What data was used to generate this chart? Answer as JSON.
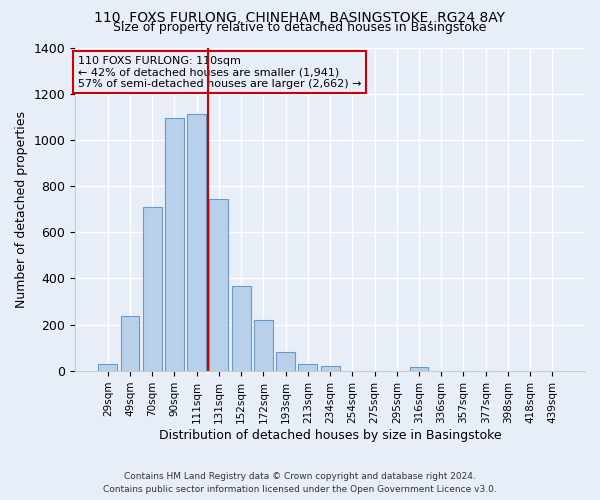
{
  "title_line1": "110, FOXS FURLONG, CHINEHAM, BASINGSTOKE, RG24 8AY",
  "title_line2": "Size of property relative to detached houses in Basingstoke",
  "xlabel": "Distribution of detached houses by size in Basingstoke",
  "ylabel": "Number of detached properties",
  "footnote1": "Contains HM Land Registry data © Crown copyright and database right 2024.",
  "footnote2": "Contains public sector information licensed under the Open Government Licence v3.0.",
  "categories": [
    "29sqm",
    "49sqm",
    "70sqm",
    "90sqm",
    "111sqm",
    "131sqm",
    "152sqm",
    "172sqm",
    "193sqm",
    "213sqm",
    "234sqm",
    "254sqm",
    "275sqm",
    "295sqm",
    "316sqm",
    "336sqm",
    "357sqm",
    "377sqm",
    "398sqm",
    "418sqm",
    "439sqm"
  ],
  "values": [
    30,
    235,
    710,
    1095,
    1110,
    745,
    365,
    220,
    80,
    30,
    20,
    0,
    0,
    0,
    15,
    0,
    0,
    0,
    0,
    0,
    0
  ],
  "bar_color": "#b8d0ea",
  "bar_edge_color": "#6699cc",
  "background_color": "#e8eef8",
  "grid_color": "#ffffff",
  "vline_color": "#cc0000",
  "vline_x_index": 4.5,
  "annotation_bg": "#e8eef8",
  "annotation_edge": "#cc0000",
  "ylim": [
    0,
    1400
  ],
  "yticks": [
    0,
    200,
    400,
    600,
    800,
    1000,
    1200,
    1400
  ],
  "annotation_line1": "110 FOXS FURLONG: 110sqm",
  "annotation_line2": "← 42% of detached houses are smaller (1,941)",
  "annotation_line3": "57% of semi-detached houses are larger (2,662) →"
}
